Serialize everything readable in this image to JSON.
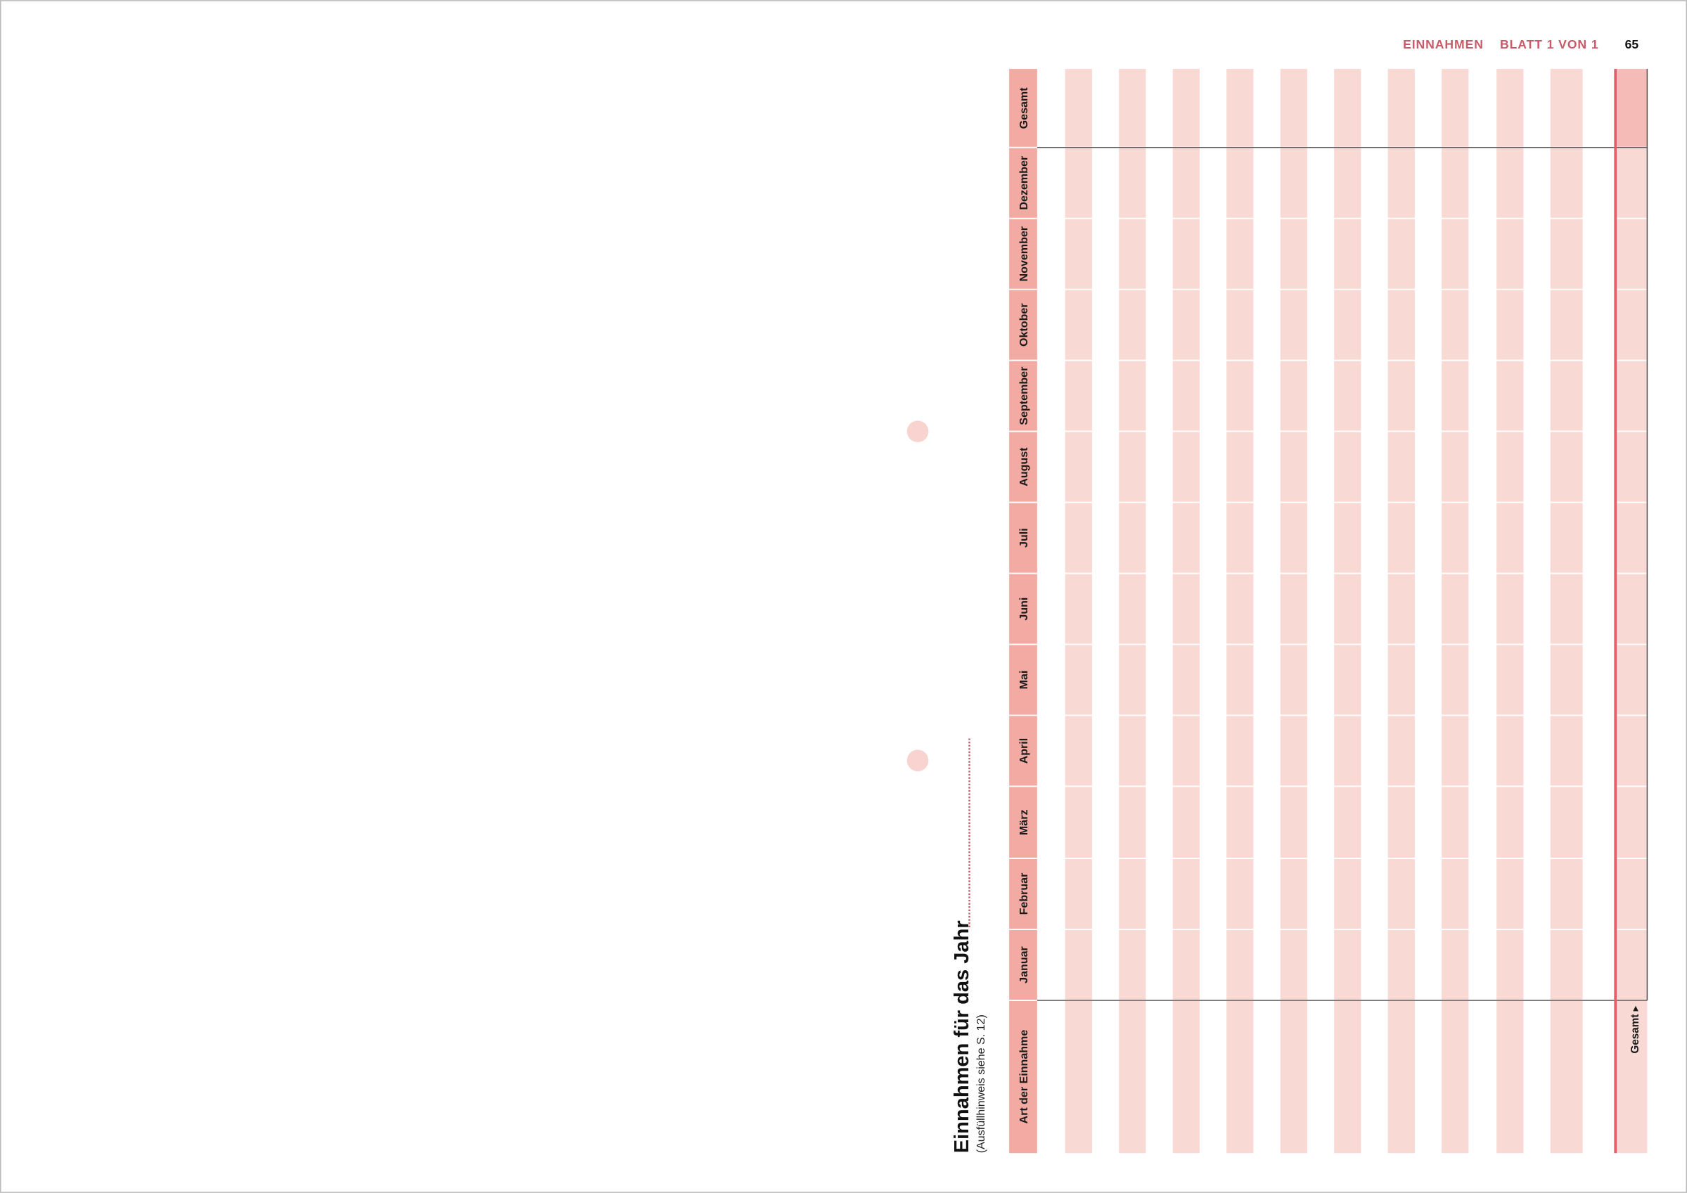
{
  "header": {
    "section": "EINNAHMEN",
    "sheet": "BLATT 1 VON 1",
    "page_number": "65"
  },
  "title": "Einnahmen für das Jahr",
  "subtitle": "(Ausfüllhinweis siehe S. 12)",
  "table": {
    "columns": [
      "Art der Einnahme",
      "Januar",
      "Februar",
      "März",
      "April",
      "Mai",
      "Juni",
      "Juli",
      "August",
      "September",
      "Oktober",
      "November",
      "Dezember",
      "Gesamt"
    ],
    "total_label": "Gesamt ▸"
  }
}
